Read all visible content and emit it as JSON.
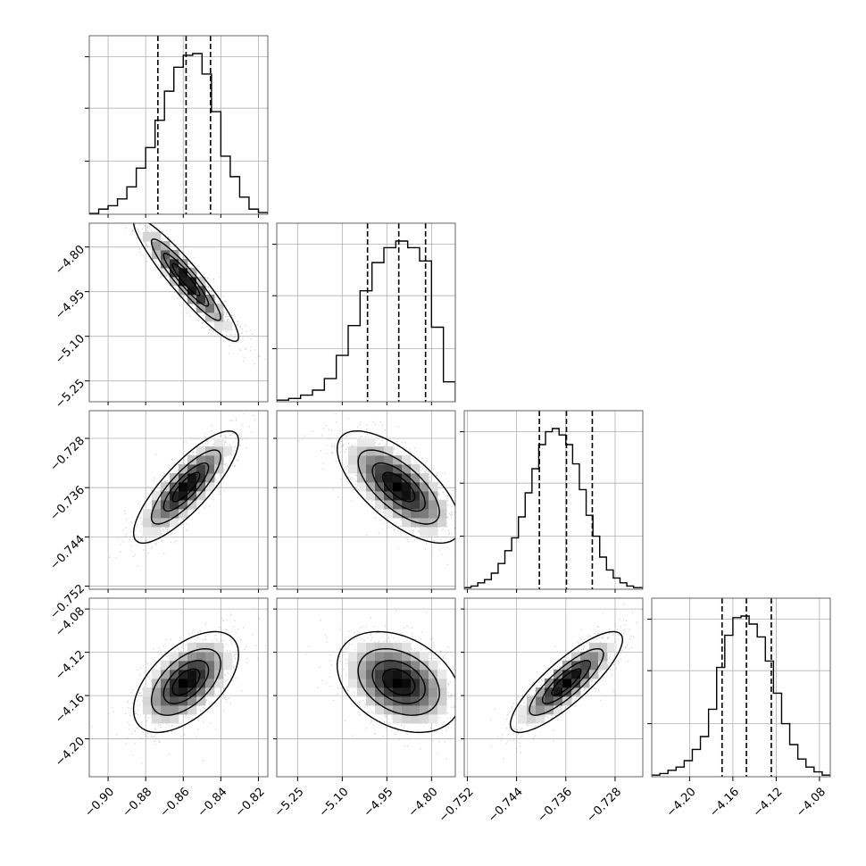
{
  "figure": {
    "style": {
      "background": "#ffffff",
      "frame": "#555555",
      "grid": "#b0b0b0",
      "ink": "#000000",
      "scatter": "#9a9a9a"
    },
    "quantile_lines": "dashed",
    "hist_style": "step"
  },
  "chart_data": {
    "type": "corner",
    "title": "",
    "grid": true,
    "parameters": [
      {
        "name": "",
        "range": [
          -0.91,
          -0.815
        ],
        "xticks": [
          -0.9,
          -0.88,
          -0.86,
          -0.84,
          -0.82
        ],
        "xtick_labels": [
          "−0.90",
          "−0.88",
          "−0.86",
          "−0.84",
          "−0.82"
        ],
        "yticks": [],
        "ytick_labels": [],
        "quantiles": [
          -0.8735,
          -0.8585,
          -0.8455
        ],
        "hist": {
          "edges": [
            -0.91,
            -0.905,
            -0.9,
            -0.895,
            -0.89,
            -0.885,
            -0.88,
            -0.875,
            -0.87,
            -0.865,
            -0.86,
            -0.855,
            -0.85,
            -0.845,
            -0.84,
            -0.835,
            -0.83,
            -0.825,
            -0.82,
            -0.815
          ],
          "counts": [
            0.005,
            0.03,
            0.05,
            0.09,
            0.16,
            0.27,
            0.39,
            0.55,
            0.72,
            0.86,
            0.93,
            0.94,
            0.82,
            0.6,
            0.34,
            0.22,
            0.1,
            0.03,
            0.01
          ]
        }
      },
      {
        "name": "",
        "range": [
          -5.32,
          -4.72
        ],
        "xticks": [
          -5.25,
          -5.1,
          -4.95,
          -4.8
        ],
        "xtick_labels": [
          "−5.25",
          "−5.10",
          "−4.95",
          "−4.80"
        ],
        "yticks": [
          -4.8,
          -4.95,
          -5.1,
          -5.25
        ],
        "ytick_labels": [
          "−4.80",
          "−4.95",
          "−5.10",
          "−5.25"
        ],
        "quantiles": [
          -5.015,
          -4.91,
          -4.82
        ],
        "hist": {
          "edges": [
            -5.32,
            -5.28,
            -5.24,
            -5.2,
            -5.16,
            -5.12,
            -5.08,
            -5.04,
            -5.0,
            -4.96,
            -4.92,
            -4.88,
            -4.84,
            -4.8,
            -4.76,
            -4.72
          ],
          "counts": [
            0.01,
            0.02,
            0.04,
            0.07,
            0.14,
            0.28,
            0.46,
            0.67,
            0.84,
            0.93,
            0.97,
            0.93,
            0.85,
            0.45,
            0.12
          ]
        }
      },
      {
        "name": "",
        "range": [
          -0.7525,
          -0.7235
        ],
        "xticks": [
          -0.752,
          -0.744,
          -0.736,
          -0.728
        ],
        "xtick_labels": [
          "−0.752",
          "−0.744",
          "−0.736",
          "−0.728"
        ],
        "yticks": [
          -0.728,
          -0.736,
          -0.744,
          -0.752
        ],
        "ytick_labels": [
          "−0.728",
          "−0.736",
          "−0.744",
          "−0.752"
        ],
        "quantiles": [
          -0.7403,
          -0.7359,
          -0.7317
        ],
        "hist": {
          "edges": [
            -0.7525,
            -0.7514,
            -0.7503,
            -0.7492,
            -0.7481,
            -0.747,
            -0.7459,
            -0.7448,
            -0.7437,
            -0.7426,
            -0.7415,
            -0.7404,
            -0.7393,
            -0.7382,
            -0.7371,
            -0.736,
            -0.7349,
            -0.7338,
            -0.7327,
            -0.7316,
            -0.7305,
            -0.7294,
            -0.7283,
            -0.7272,
            -0.7261,
            -0.725,
            -0.7235
          ],
          "counts": [
            0.01,
            0.02,
            0.04,
            0.06,
            0.1,
            0.16,
            0.24,
            0.32,
            0.45,
            0.6,
            0.75,
            0.9,
            0.98,
            1.0,
            0.96,
            0.9,
            0.78,
            0.62,
            0.46,
            0.33,
            0.2,
            0.12,
            0.07,
            0.04,
            0.02,
            0.01
          ]
        }
      },
      {
        "name": "",
        "range": [
          -4.235,
          -4.07
        ],
        "xticks": [
          -4.2,
          -4.16,
          -4.12,
          -4.08
        ],
        "xtick_labels": [
          "−4.20",
          "−4.16",
          "−4.12",
          "−4.08"
        ],
        "yticks": [
          -4.08,
          -4.12,
          -4.16,
          -4.2
        ],
        "ytick_labels": [
          "−4.08",
          "−4.12",
          "−4.16",
          "−4.20"
        ],
        "quantiles": [
          -4.17,
          -4.1475,
          -4.1245
        ],
        "hist": {
          "edges": [
            -4.235,
            -4.2275,
            -4.22,
            -4.2125,
            -4.205,
            -4.1975,
            -4.19,
            -4.1825,
            -4.175,
            -4.1675,
            -4.16,
            -4.1525,
            -4.145,
            -4.1375,
            -4.13,
            -4.1225,
            -4.115,
            -4.1075,
            -4.1,
            -4.0925,
            -4.085,
            -4.0775,
            -4.07
          ],
          "counts": [
            0.01,
            0.02,
            0.04,
            0.06,
            0.1,
            0.17,
            0.25,
            0.42,
            0.68,
            0.88,
            0.99,
            1.0,
            0.95,
            0.87,
            0.72,
            0.52,
            0.33,
            0.2,
            0.11,
            0.06,
            0.03,
            0.01
          ]
        }
      }
    ],
    "pairs": [
      {
        "x": 0,
        "y": 1,
        "mean": [
          -0.8585,
          -4.91
        ],
        "sd": [
          0.0135,
          0.1
        ],
        "rho": -0.93
      },
      {
        "x": 0,
        "y": 2,
        "mean": [
          -0.8585,
          -0.7359
        ],
        "sd": [
          0.0135,
          0.0044
        ],
        "rho": 0.82
      },
      {
        "x": 1,
        "y": 2,
        "mean": [
          -4.91,
          -0.7359
        ],
        "sd": [
          0.1,
          0.0044
        ],
        "rho": -0.68
      },
      {
        "x": 0,
        "y": 3,
        "mean": [
          -0.8585,
          -4.1475
        ],
        "sd": [
          0.0135,
          0.0225
        ],
        "rho": 0.55
      },
      {
        "x": 1,
        "y": 3,
        "mean": [
          -4.91,
          -4.1475
        ],
        "sd": [
          0.1,
          0.0225
        ],
        "rho": -0.33
      },
      {
        "x": 2,
        "y": 3,
        "mean": [
          -0.7359,
          -4.1475
        ],
        "sd": [
          0.0044,
          0.0225
        ],
        "rho": 0.84
      }
    ],
    "contour_levels_sigma": [
      0.5,
      1.0,
      1.5,
      2.0
    ]
  }
}
